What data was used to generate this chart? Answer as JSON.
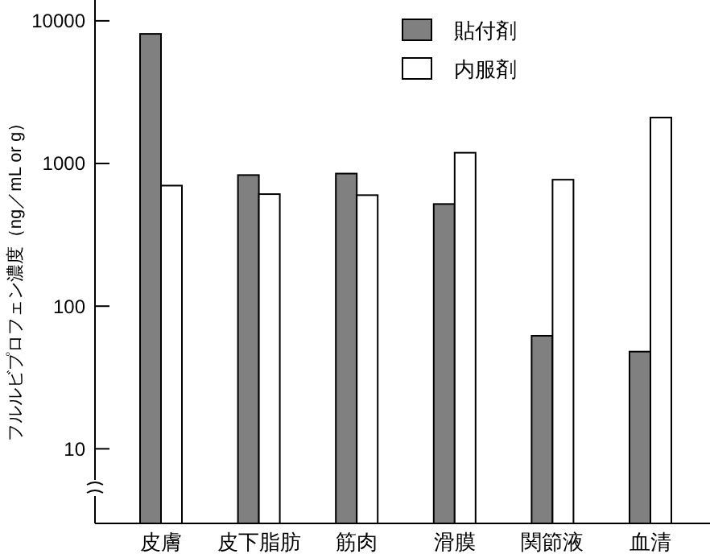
{
  "chart_data": {
    "type": "bar",
    "ylabel": "フルルビプロフェン濃度（ng／mL or g）",
    "categories": [
      "皮膚",
      "皮下脂肪",
      "筋肉",
      "滑膜",
      "関節液",
      "血清"
    ],
    "series": [
      {
        "name": "貼付剤",
        "color": "#808080",
        "values": [
          8100,
          830,
          850,
          520,
          62,
          48
        ]
      },
      {
        "name": "内服剤",
        "color": "#ffffff",
        "values": [
          700,
          610,
          600,
          1190,
          770,
          2100
        ]
      }
    ],
    "log": true,
    "ylim": [
      3,
      14000
    ],
    "yticks": [
      10,
      100,
      1000,
      10000
    ],
    "legend": "top right",
    "grid": false
  }
}
